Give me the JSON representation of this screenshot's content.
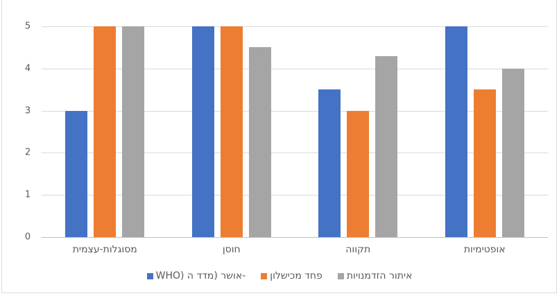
{
  "chart_data": {
    "type": "bar",
    "title": "",
    "xlabel": "",
    "ylabel": "",
    "ylim": [
      0,
      5
    ],
    "yticks": [
      "0",
      "1",
      "2",
      "3",
      "4",
      "5"
    ],
    "grid": true,
    "legend_position": "bottom",
    "categories": [
      "מסוגלות-עצמית",
      "חוסן",
      "תקווה",
      "אופטימיות"
    ],
    "series": [
      {
        "name": "אושר (מדד ה- WHO)",
        "color": "#4472C4",
        "values": [
          3,
          5,
          3.5,
          5
        ]
      },
      {
        "name": "פחד מכישלון",
        "color": "#ED7D31",
        "values": [
          5,
          5,
          3,
          3.5
        ]
      },
      {
        "name": "איתור הזדמנויות",
        "color": "#A5A5A5",
        "values": [
          5,
          4.5,
          4.3,
          4
        ]
      }
    ]
  },
  "legend": {
    "items": [
      {
        "label": "אושר (מדד ה- WHO)",
        "display": "WHO) אושר (מדד ה-",
        "color": "#4472C4"
      },
      {
        "label": "פחד מכישלון",
        "color": "#ED7D31"
      },
      {
        "label": "איתור הזדמנויות",
        "color": "#A5A5A5"
      }
    ]
  }
}
